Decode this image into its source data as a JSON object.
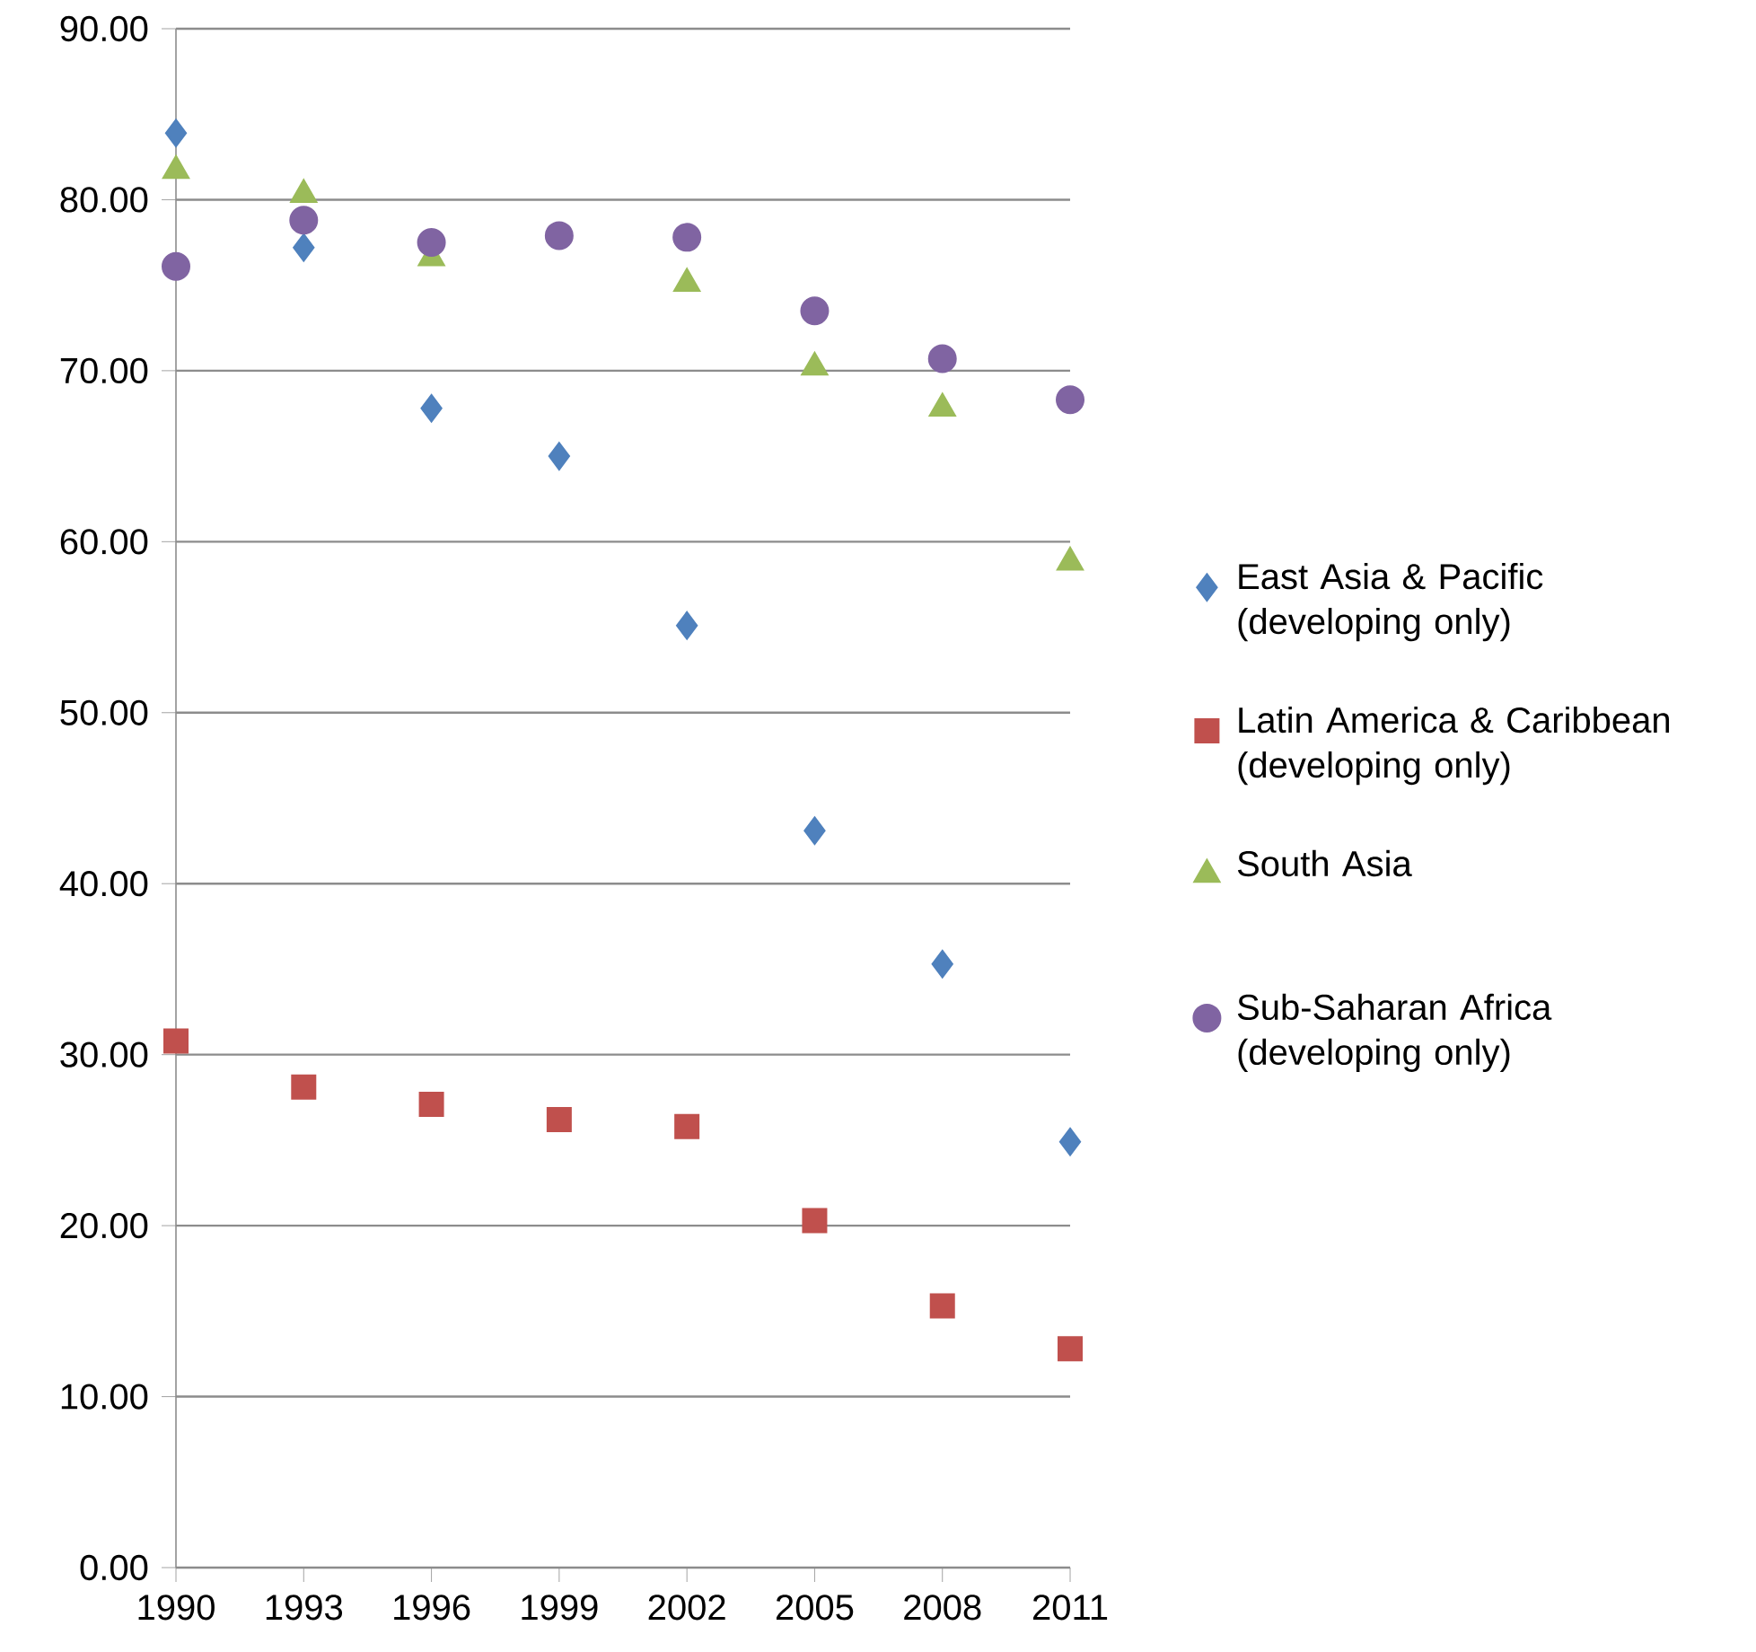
{
  "chart_data": {
    "type": "scatter",
    "categories": [
      "1990",
      "1993",
      "1996",
      "1999",
      "2002",
      "2005",
      "2008",
      "2011"
    ],
    "series": [
      {
        "name": "East Asia & Pacific (developing only)",
        "color": "#4f81bd",
        "marker": "diamond",
        "values": [
          83.9,
          77.2,
          67.8,
          65.0,
          55.1,
          43.1,
          35.3,
          24.9
        ]
      },
      {
        "name": "Latin America & Caribbean (developing only)",
        "color": "#c0504d",
        "marker": "square",
        "values": [
          30.8,
          28.1,
          27.1,
          26.2,
          25.8,
          20.3,
          15.3,
          12.8
        ]
      },
      {
        "name": "South Asia",
        "color": "#9bbb59",
        "marker": "triangle",
        "values": [
          81.7,
          80.3,
          76.6,
          null,
          75.1,
          70.2,
          67.8,
          58.8
        ]
      },
      {
        "name": "Sub-Saharan Africa (developing only)",
        "color": "#8064a2",
        "marker": "circle",
        "values": [
          76.1,
          78.8,
          77.5,
          77.9,
          77.8,
          73.5,
          70.7,
          68.3
        ]
      }
    ],
    "ylim": [
      0,
      90
    ],
    "yticks": [
      {
        "value": 0,
        "label": "0.00"
      },
      {
        "value": 10,
        "label": "10.00"
      },
      {
        "value": 20,
        "label": "20.00"
      },
      {
        "value": 30,
        "label": "30.00"
      },
      {
        "value": 40,
        "label": "40.00"
      },
      {
        "value": 50,
        "label": "50.00"
      },
      {
        "value": 60,
        "label": "60.00"
      },
      {
        "value": 70,
        "label": "70.00"
      },
      {
        "value": 80,
        "label": "80.00"
      },
      {
        "value": 90,
        "label": "90.00"
      }
    ],
    "grid": "y",
    "legend": "right"
  }
}
